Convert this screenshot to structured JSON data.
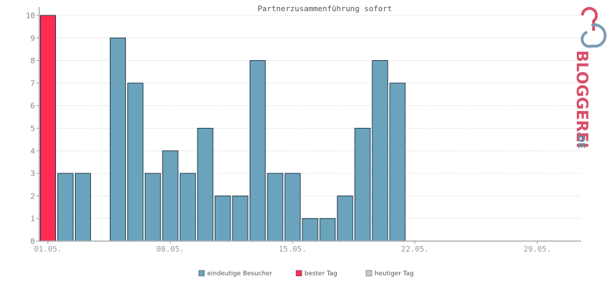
{
  "chart_data": {
    "type": "bar",
    "title": "Partnerzusammenführung sofort",
    "xlabel": "",
    "ylabel": "",
    "ylim": [
      0,
      10
    ],
    "yticks": [
      0,
      1,
      2,
      3,
      4,
      5,
      6,
      7,
      8,
      9,
      10
    ],
    "grid": true,
    "legend_position": "bottom",
    "days_shown": 31,
    "xtick_labels": [
      {
        "day": 1,
        "label": "01.05."
      },
      {
        "day": 8,
        "label": "08.05."
      },
      {
        "day": 15,
        "label": "15.05."
      },
      {
        "day": 22,
        "label": "22.05."
      },
      {
        "day": 29,
        "label": "29.05."
      }
    ],
    "series": [
      {
        "name": "eindeutige Besucher",
        "color": "#6ca3bc",
        "values": [
          10,
          3,
          3,
          0,
          9,
          7,
          3,
          4,
          3,
          5,
          2,
          2,
          8,
          3,
          3,
          1,
          1,
          2,
          5,
          8,
          7
        ]
      }
    ],
    "best_day": {
      "name": "bester Tag",
      "color": "#ff2a55",
      "index": 0
    },
    "today": {
      "name": "heutiger Tag",
      "color": "#cccccc"
    }
  },
  "logo": {
    "text_main": "BLOGGEREI",
    "text_tld": ".DE",
    "color_main": "#d94f6a",
    "color_tld": "#6a8aa3"
  }
}
